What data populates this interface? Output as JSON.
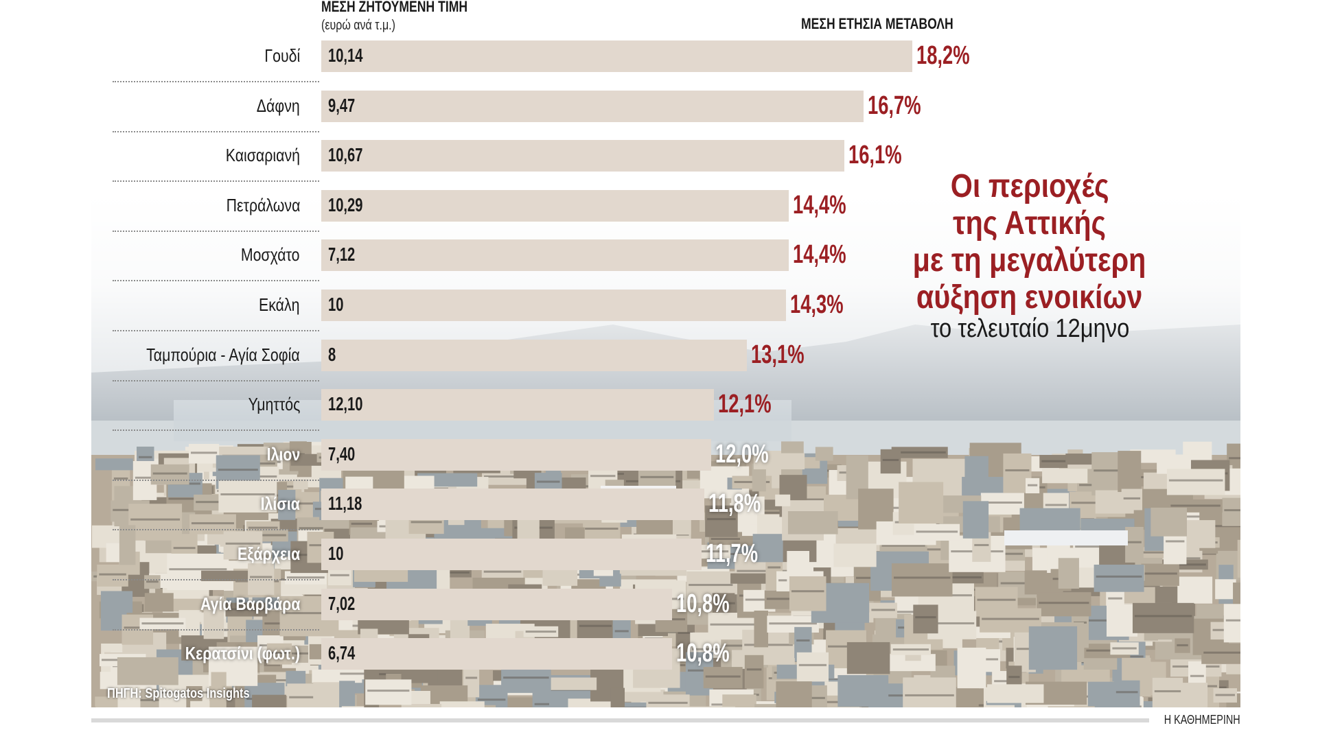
{
  "chart_data": {
    "type": "bar",
    "orientation": "horizontal",
    "title": "Οι περιοχές της Αττικής με τη μεγαλύτερη αύξηση ενοικίων",
    "title_lines": [
      "Οι περιοχές",
      "της Αττικής",
      "με τη μεγαλύτερη",
      "αύξηση ενοικίων"
    ],
    "subtitle": "το τελευταίο 12μηνο",
    "price_header": "ΜΕΣΗ ΖΗΤΟΥΜΕΝΗ ΤΙΜΗ",
    "price_unit": "(ευρώ ανά τ.μ.)",
    "change_header": "ΜΕΣΗ ΕΤΗΣΙΑ ΜΕΤΑΒΟΛΗ",
    "categories": [
      "Γουδί",
      "Δάφνη",
      "Καισαριανή",
      "Πετράλωνα",
      "Μοσχάτο",
      "Εκάλη",
      "Ταμπούρια - Αγία Σοφία",
      "Υμηττός",
      "Ιλιον",
      "Ιλίσια",
      "Εξάρχεια",
      "Αγία Βαρβάρα",
      "Κερατσίνι (φωτ.)"
    ],
    "price_labels": [
      "10,14",
      "9,47",
      "10,67",
      "10,29",
      "7,12",
      "10",
      "8",
      "12,10",
      "7,40",
      "11,18",
      "10",
      "7,02",
      "6,74"
    ],
    "change_labels": [
      "18,2%",
      "16,7%",
      "16,1%",
      "14,4%",
      "14,4%",
      "14,3%",
      "13,1%",
      "12,1%",
      "12,0%",
      "11,8%",
      "11,7%",
      "10,8%",
      "10,8%"
    ],
    "series": [
      {
        "name": "ΜΕΣΗ ΖΗΤΟΥΜΕΝΗ ΤΙΜΗ",
        "values": [
          10.14,
          9.47,
          10.67,
          10.29,
          7.12,
          10,
          8,
          12.1,
          7.4,
          11.18,
          10,
          7.02,
          6.74
        ]
      },
      {
        "name": "ΜΕΣΗ ΕΤΗΣΙΑ ΜΕΤΑΒΟΛΗ",
        "values": [
          18.2,
          16.7,
          16.1,
          14.4,
          14.4,
          14.3,
          13.1,
          12.1,
          12.0,
          11.8,
          11.7,
          10.8,
          10.8
        ]
      }
    ],
    "bar_length_series": "ΜΕΣΗ ΕΤΗΣΙΑ ΜΕΤΑΒΟΛΗ",
    "xlim": [
      0,
      18.2
    ],
    "grid": false,
    "source": "ΠΗΓΗ: Spitogatos Insights",
    "brand": "Η ΚΑΘΗΜΕΡΙΝΗ"
  },
  "colors": {
    "bar": "#e2d8ce",
    "accent": "#9b1f23",
    "text": "#1a1a1a"
  }
}
